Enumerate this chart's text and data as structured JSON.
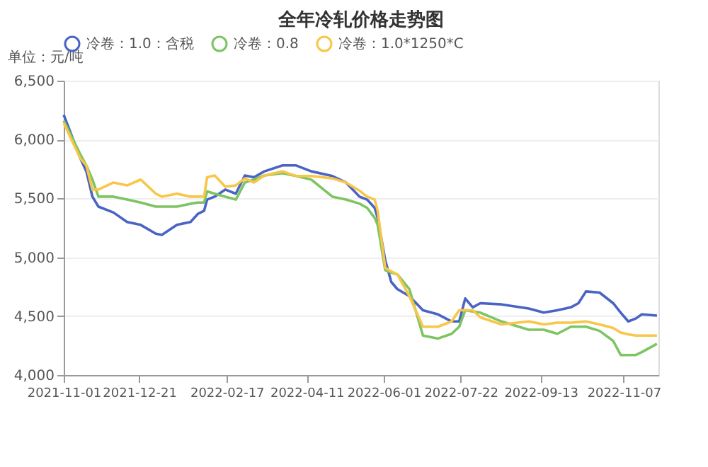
{
  "chart_data": {
    "type": "line",
    "title": "全年冷轧价格走势图",
    "ylabel": "单位：元/吨",
    "xlim": [
      "2021-11-01",
      "2022-11-30"
    ],
    "xticks": [
      "2021-11-01",
      "2021-12-21",
      "2022-02-17",
      "2022-04-11",
      "2022-06-01",
      "2022-07-22",
      "2022-09-13",
      "2022-11-07"
    ],
    "ylim": [
      4000,
      6500
    ],
    "yticks": [
      {
        "value": 4000,
        "label": "4,000"
      },
      {
        "value": 4500,
        "label": "4,500"
      },
      {
        "value": 5000,
        "label": "5,000"
      },
      {
        "value": 5500,
        "label": "5,500"
      },
      {
        "value": 6000,
        "label": "6,000"
      },
      {
        "value": 6500,
        "label": "6,500"
      }
    ],
    "grid": "y",
    "legend": "top",
    "marker": "none",
    "line_style": "solid",
    "x": [
      "2021-11-01",
      "2021-11-12",
      "2021-11-16",
      "2021-11-20",
      "2021-11-24",
      "2021-12-04",
      "2021-12-13",
      "2021-12-22",
      "2022-01-01",
      "2022-01-05",
      "2022-01-15",
      "2022-01-24",
      "2022-01-29",
      "2022-02-02",
      "2022-02-04",
      "2022-02-09",
      "2022-02-16",
      "2022-02-23",
      "2022-03-01",
      "2022-03-07",
      "2022-03-14",
      "2022-03-26",
      "2022-04-04",
      "2022-04-14",
      "2022-04-28",
      "2022-05-07",
      "2022-05-16",
      "2022-05-21",
      "2022-05-26",
      "2022-05-28",
      "2022-06-02",
      "2022-06-06",
      "2022-06-10",
      "2022-06-18",
      "2022-06-27",
      "2022-07-07",
      "2022-07-16",
      "2022-07-21",
      "2022-07-25",
      "2022-07-30",
      "2022-08-04",
      "2022-08-18",
      "2022-09-05",
      "2022-09-15",
      "2022-09-24",
      "2022-10-03",
      "2022-10-08",
      "2022-10-13",
      "2022-10-22",
      "2022-10-31",
      "2022-11-05",
      "2022-11-10",
      "2022-11-15",
      "2022-11-19",
      "2022-11-29"
    ],
    "series": [
      {
        "name": "冷卷：1.0：含税",
        "color": "#4a64c4",
        "values": [
          6210,
          5840,
          5730,
          5515,
          5430,
          5380,
          5300,
          5275,
          5200,
          5190,
          5275,
          5300,
          5370,
          5395,
          5490,
          5515,
          5575,
          5540,
          5695,
          5680,
          5730,
          5780,
          5780,
          5730,
          5690,
          5635,
          5515,
          5490,
          5420,
          5335,
          4975,
          4790,
          4730,
          4670,
          4550,
          4515,
          4455,
          4455,
          4650,
          4575,
          4610,
          4600,
          4565,
          4530,
          4550,
          4575,
          4610,
          4710,
          4700,
          4610,
          4530,
          4455,
          4480,
          4515,
          4505
        ]
      },
      {
        "name": "冷卷：0.8",
        "color": "#7dc462",
        "values": [
          6160,
          5875,
          5780,
          5660,
          5515,
          5515,
          5490,
          5465,
          5430,
          5430,
          5430,
          5455,
          5465,
          5465,
          5560,
          5540,
          5515,
          5490,
          5635,
          5660,
          5695,
          5715,
          5690,
          5660,
          5515,
          5490,
          5455,
          5420,
          5335,
          5275,
          4890,
          4870,
          4855,
          4730,
          4335,
          4310,
          4350,
          4410,
          4550,
          4540,
          4530,
          4455,
          4385,
          4385,
          4350,
          4410,
          4410,
          4410,
          4375,
          4290,
          4170,
          4170,
          4170,
          4195,
          4265
        ]
      },
      {
        "name": "冷卷：1.0*1250*C",
        "color": "#f7c64a",
        "values": [
          6140,
          5840,
          5780,
          5575,
          5575,
          5635,
          5610,
          5660,
          5540,
          5515,
          5540,
          5515,
          5515,
          5515,
          5680,
          5695,
          5600,
          5610,
          5670,
          5635,
          5695,
          5730,
          5690,
          5690,
          5670,
          5635,
          5565,
          5515,
          5490,
          5395,
          4910,
          4880,
          4855,
          4670,
          4410,
          4410,
          4455,
          4550,
          4550,
          4550,
          4490,
          4430,
          4455,
          4430,
          4445,
          4445,
          4450,
          4455,
          4430,
          4400,
          4360,
          4345,
          4335,
          4335,
          4335
        ]
      }
    ]
  }
}
